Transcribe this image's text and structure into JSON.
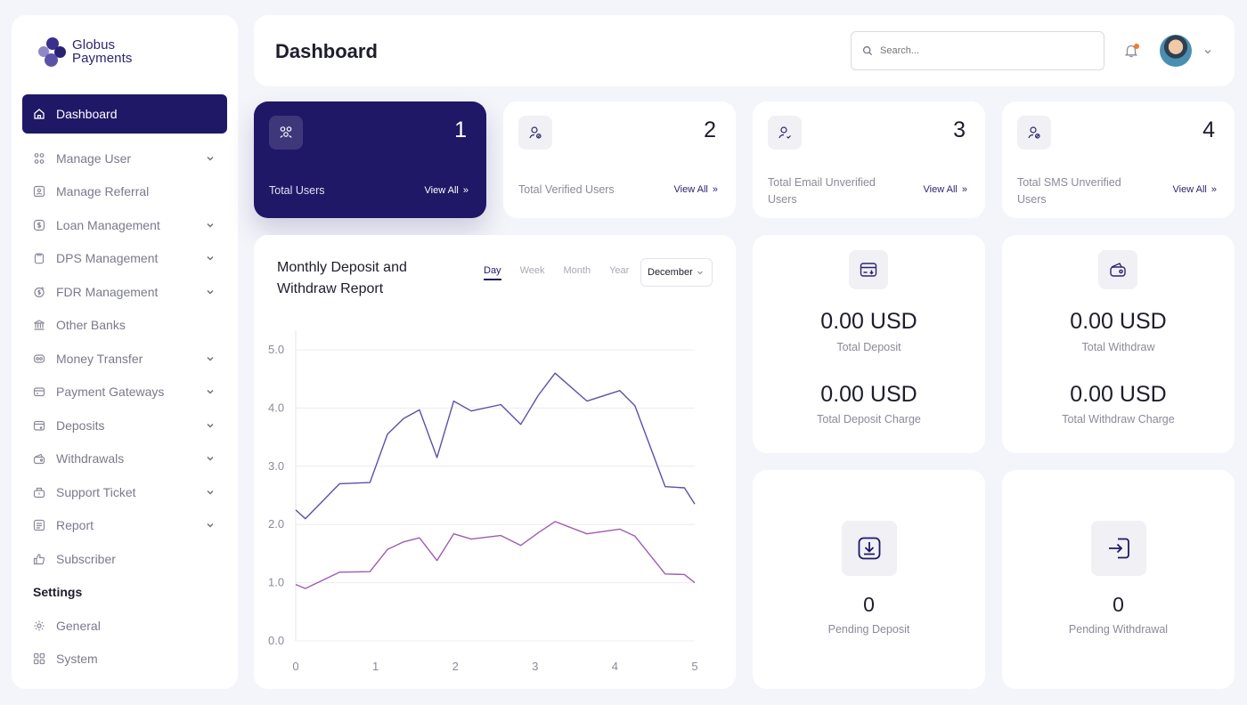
{
  "brand": {
    "name_line1": "Globus",
    "name_line2": "Payments"
  },
  "sidebar": {
    "items": [
      {
        "label": "Dashboard",
        "icon": "home-icon"
      },
      {
        "label": "Manage User",
        "icon": "users-icon"
      },
      {
        "label": "Manage Referral",
        "icon": "referral-icon"
      },
      {
        "label": "Loan Management",
        "icon": "dollar-icon"
      },
      {
        "label": "DPS Management",
        "icon": "clipboard-icon"
      },
      {
        "label": "FDR Management",
        "icon": "fdr-icon"
      },
      {
        "label": "Other Banks",
        "icon": "bank-icon"
      },
      {
        "label": "Money Transfer",
        "icon": "transfer-icon"
      },
      {
        "label": "Payment Gateways",
        "icon": "card-icon"
      },
      {
        "label": "Deposits",
        "icon": "deposit-icon"
      },
      {
        "label": "Withdrawals",
        "icon": "wallet-icon"
      },
      {
        "label": "Support Ticket",
        "icon": "ticket-icon"
      },
      {
        "label": "Report",
        "icon": "report-icon"
      },
      {
        "label": "Subscriber",
        "icon": "thumbs-up-icon"
      }
    ],
    "settings_heading": "Settings",
    "settings_items": [
      {
        "label": "General",
        "icon": "gear-icon"
      },
      {
        "label": "System",
        "icon": "grid-icon"
      }
    ]
  },
  "header": {
    "title": "Dashboard",
    "search_placeholder": "Search..."
  },
  "stats": [
    {
      "value": "1",
      "label": "Total Users",
      "link": "View All"
    },
    {
      "value": "2",
      "label": "Total Verified Users",
      "link": "View All"
    },
    {
      "value": "3",
      "label_line1": "Total Email Unverified",
      "label_line2": "Users",
      "link": "View All"
    },
    {
      "value": "4",
      "label_line1": "Total SMS Unverified",
      "label_line2": "Users",
      "link": "View All"
    }
  ],
  "report": {
    "title_line1": "Monthly Deposit and",
    "title_line2": "Withdraw Report",
    "tabs": [
      "Day",
      "Week",
      "Month",
      "Year"
    ],
    "active_tab": "Day",
    "month": "December"
  },
  "money": {
    "deposit": {
      "amount": "0.00 USD",
      "label": "Total Deposit",
      "charge_amount": "0.00 USD",
      "charge_label": "Total Deposit Charge"
    },
    "withdraw": {
      "amount": "0.00 USD",
      "label": "Total Withdraw",
      "charge_amount": "0.00 USD",
      "charge_label": "Total Withdraw Charge"
    }
  },
  "pending": {
    "deposit": {
      "count": "0",
      "label": "Pending Deposit"
    },
    "withdrawal": {
      "count": "0",
      "label": "Pending Withdrawal"
    }
  },
  "colors": {
    "primary": "#1f1866",
    "series1": "#5b50a8",
    "series2": "#a05bb0",
    "accent_dot": "#f07a2f"
  },
  "chart_data": {
    "type": "line",
    "xlim": [
      0,
      5
    ],
    "ylim": [
      0,
      5
    ],
    "xticks": [
      "0",
      "1",
      "2",
      "3",
      "4",
      "5"
    ],
    "yticks": [
      "0.0",
      "1.0",
      "2.0",
      "3.0",
      "4.0",
      "5.0"
    ],
    "grid": true,
    "series": [
      {
        "color": "#5b50a8",
        "x": [
          0,
          0.12,
          0.55,
          0.93,
          1.15,
          1.35,
          1.55,
          1.77,
          1.98,
          2.2,
          2.57,
          2.82,
          3.04,
          3.25,
          3.65,
          4.06,
          4.25,
          4.63,
          4.87,
          5.0
        ],
        "y": [
          2.25,
          2.1,
          2.7,
          2.72,
          3.55,
          3.82,
          3.97,
          3.15,
          4.12,
          3.95,
          4.06,
          3.72,
          4.22,
          4.6,
          4.12,
          4.3,
          4.04,
          2.65,
          2.63,
          2.35
        ]
      },
      {
        "color": "#a05bb0",
        "x": [
          0,
          0.12,
          0.55,
          0.93,
          1.15,
          1.35,
          1.55,
          1.77,
          1.98,
          2.2,
          2.57,
          2.82,
          3.04,
          3.25,
          3.65,
          4.06,
          4.25,
          4.63,
          4.87,
          5.0
        ],
        "y": [
          0.97,
          0.9,
          1.18,
          1.19,
          1.57,
          1.7,
          1.77,
          1.38,
          1.84,
          1.75,
          1.81,
          1.64,
          1.86,
          2.05,
          1.84,
          1.92,
          1.8,
          1.15,
          1.14,
          1.0
        ]
      }
    ]
  }
}
